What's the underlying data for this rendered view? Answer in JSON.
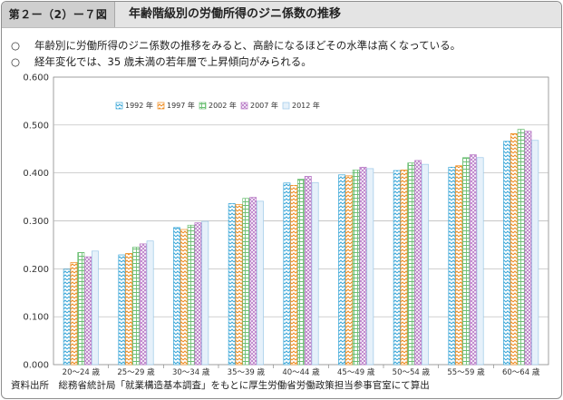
{
  "header": {
    "figure_label": "第２ー（2）ー７図",
    "title": "年齢階級別の労働所得のジニ係数の推移"
  },
  "notes": [
    "年齢別に労働所得のジニ係数の推移をみると、高齢になるほどその水準は高くなっている。",
    "経年変化では、35 歳未満の若年層で上昇傾向がみられる。"
  ],
  "note_mark": "○",
  "source": "資料出所　総務省統計局「就業構造基本調査」をもとに厚生労働省労働政策担当参事官室にて算出",
  "chart_data": {
    "type": "bar",
    "title": "",
    "xlabel": "",
    "ylabel": "",
    "ylim": [
      0,
      0.6
    ],
    "yticks": [
      "0.000",
      "0.100",
      "0.200",
      "0.300",
      "0.400",
      "0.500",
      "0.600"
    ],
    "grid": true,
    "legend_position": "top-center",
    "categories": [
      "20～24 歳",
      "25～29 歳",
      "30～34 歳",
      "35～39 歳",
      "40～44 歳",
      "45～49 歳",
      "50～54 歳",
      "55～59 歳",
      "60～64 歳"
    ],
    "series": [
      {
        "name": "1992 年",
        "color": "#3ba7d8",
        "pattern": "zigzag",
        "values": [
          0.199,
          0.229,
          0.286,
          0.336,
          0.379,
          0.396,
          0.405,
          0.412,
          0.466
        ]
      },
      {
        "name": "1997 年",
        "color": "#f08c1e",
        "pattern": "zigzag",
        "values": [
          0.213,
          0.232,
          0.282,
          0.334,
          0.374,
          0.394,
          0.406,
          0.415,
          0.482
        ]
      },
      {
        "name": "2002 年",
        "color": "#6bbf73",
        "pattern": "grid",
        "values": [
          0.234,
          0.245,
          0.291,
          0.347,
          0.387,
          0.406,
          0.421,
          0.432,
          0.491
        ]
      },
      {
        "name": "2007 年",
        "color": "#b879c6",
        "pattern": "crosshatch",
        "values": [
          0.225,
          0.252,
          0.296,
          0.349,
          0.393,
          0.412,
          0.426,
          0.438,
          0.487
        ]
      },
      {
        "name": "2012 年",
        "color": "#9cc8e8",
        "pattern": "plain",
        "values": [
          0.237,
          0.258,
          0.299,
          0.341,
          0.38,
          0.409,
          0.418,
          0.432,
          0.468
        ]
      }
    ]
  }
}
